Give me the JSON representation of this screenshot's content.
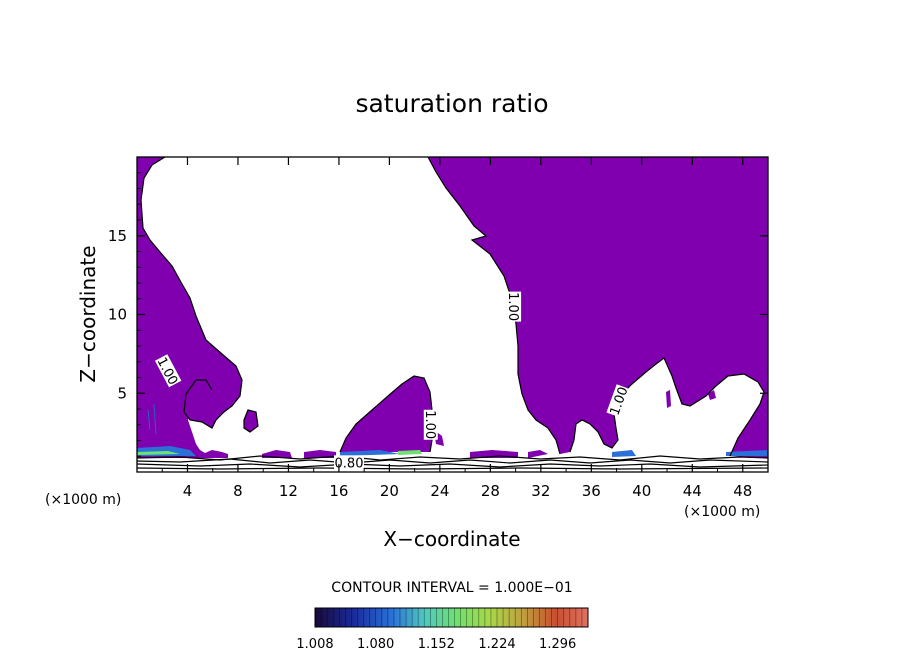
{
  "chart_data": {
    "type": "heatmap",
    "title": "saturation ratio",
    "xlabel": "X−coordinate",
    "ylabel": "Z−coordinate",
    "x_unit": "(×1000 m)",
    "y_unit": "(×1000 m)",
    "xlim": [
      0,
      50
    ],
    "ylim": [
      0,
      20
    ],
    "x_ticks": [
      "4",
      "8",
      "12",
      "16",
      "20",
      "24",
      "28",
      "32",
      "36",
      "40",
      "44",
      "48"
    ],
    "y_ticks": [
      "5",
      "10",
      "15"
    ],
    "contour_interval_text": "CONTOUR INTERVAL = 1.000E−01",
    "colorbar_labels": [
      "1.008",
      "1.080",
      "1.152",
      "1.224",
      "1.296"
    ],
    "colorbar_range": [
      1.008,
      1.332
    ],
    "colors": {
      "fill": "#8000b0",
      "scale": [
        "#1a0a3a",
        "#1a2a9a",
        "#2a70d8",
        "#50c8c0",
        "#70e070",
        "#a8d848",
        "#c0a040",
        "#c85030",
        "#e07060"
      ]
    },
    "contour_labels": [
      {
        "text": "1.00",
        "x": 2.4,
        "z": 6.4,
        "angle": 62
      },
      {
        "text": "0.80",
        "x": 16.8,
        "z": 0.55,
        "angle": 0
      },
      {
        "text": "1.00",
        "x": 23.2,
        "z": 3.0,
        "angle": 90
      },
      {
        "text": "1.00",
        "x": 29.8,
        "z": 10.5,
        "angle": 90
      },
      {
        "text": "1.00",
        "x": 38.2,
        "z": 4.5,
        "angle": -70
      }
    ],
    "supersaturated_regions": [
      {
        "x": [
          0,
          6.8
        ],
        "z": [
          0.8,
          20
        ],
        "value": "> 1.00"
      },
      {
        "x": [
          15,
          24
        ],
        "z": [
          0.8,
          6
        ],
        "value": "> 1.00"
      },
      {
        "x": [
          23.5,
          50
        ],
        "z": [
          0.8,
          20
        ],
        "value": "> 1.00"
      }
    ]
  }
}
